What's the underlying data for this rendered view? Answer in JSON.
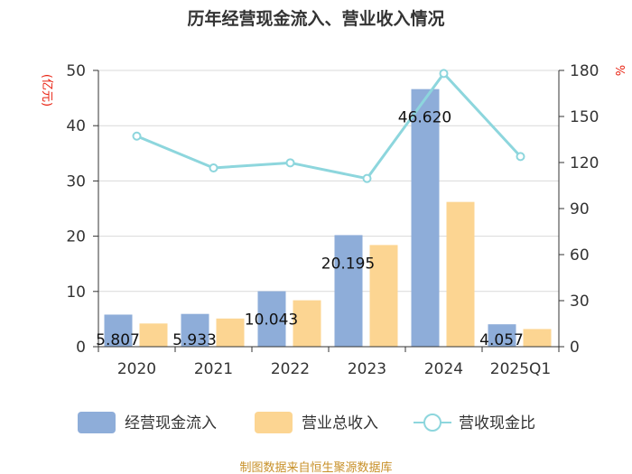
{
  "chart_data": {
    "type": "bar",
    "title": "历年经营现金流入、营业收入情况",
    "categories": [
      "2020",
      "2021",
      "2022",
      "2023",
      "2024",
      "2025Q1"
    ],
    "left_axis": {
      "unit": "(亿元)",
      "ticks": [
        "0",
        "10",
        "20",
        "30",
        "40",
        "50"
      ],
      "ylim": [
        0,
        50
      ]
    },
    "right_axis": {
      "unit": "%",
      "ticks": [
        "0",
        "30",
        "60",
        "90",
        "120",
        "150",
        "180"
      ],
      "ylim": [
        0,
        180
      ]
    },
    "series": [
      {
        "name": "经营现金流入",
        "kind": "bar",
        "axis": "left",
        "color": "#8eadd9",
        "values": [
          5.807,
          5.933,
          10.043,
          20.195,
          46.62,
          4.057
        ],
        "labels": [
          "5.807",
          "5.933",
          "10.043",
          "20.195",
          "46.620",
          "4.057"
        ]
      },
      {
        "name": "营业总收入",
        "kind": "bar",
        "axis": "left",
        "color": "#fcd592",
        "values": [
          4.2,
          5.1,
          8.4,
          18.4,
          26.2,
          3.2
        ]
      },
      {
        "name": "营收现金比",
        "kind": "line",
        "axis": "right",
        "color": "#8dd6dd",
        "values": [
          137.2,
          116.5,
          119.8,
          109.6,
          178.0,
          123.9
        ]
      }
    ],
    "grid": true,
    "legend_position": "bottom"
  },
  "source": "制图数据来自恒生聚源数据库"
}
